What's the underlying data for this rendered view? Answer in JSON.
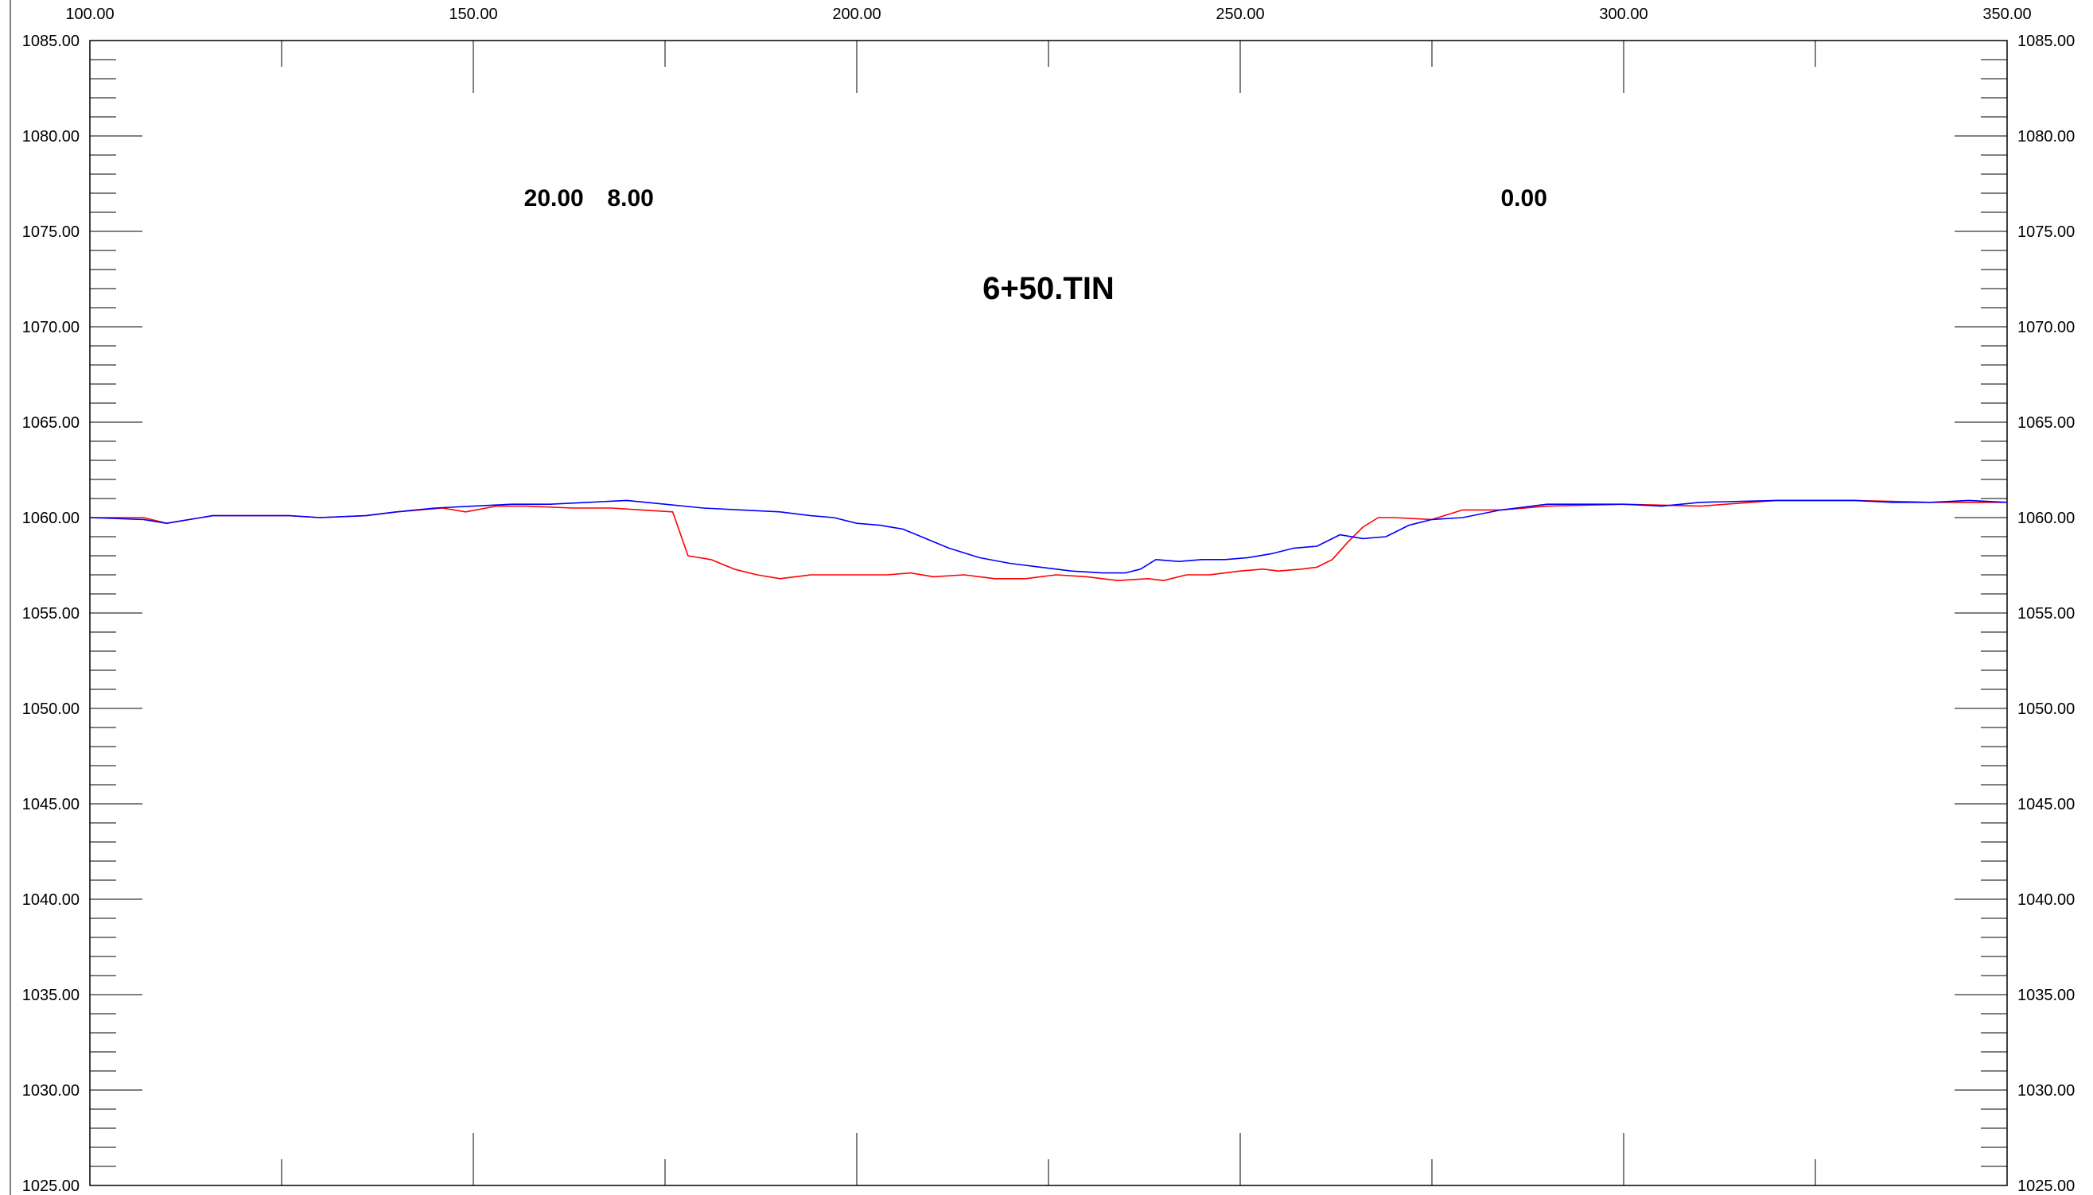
{
  "chart_data": {
    "type": "line",
    "title": "6+50.TIN",
    "xlabel": "",
    "ylabel": "",
    "xlim": [
      100,
      350
    ],
    "ylim": [
      1025,
      1085
    ],
    "x_ticks": [
      "100.00",
      "150.00",
      "200.00",
      "250.00",
      "300.00",
      "350.00"
    ],
    "y_ticks": [
      "1025.00",
      "1030.00",
      "1035.00",
      "1040.00",
      "1045.00",
      "1050.00",
      "1055.00",
      "1060.00",
      "1065.00",
      "1070.00",
      "1075.00",
      "1080.00",
      "1085.00"
    ],
    "annotations": [
      {
        "text": "20.00",
        "x": 160.5,
        "y": 1076.8
      },
      {
        "text": "8.00",
        "x": 170.5,
        "y": 1076.8
      },
      {
        "text": "0.00",
        "x": 287,
        "y": 1076.8
      }
    ],
    "grid": false,
    "series": [
      {
        "color": "#ff0000",
        "x": [
          100,
          107,
          110,
          116,
          122,
          126,
          130,
          136,
          140,
          146,
          149,
          153,
          157,
          163,
          168,
          172,
          176,
          178,
          181,
          184,
          187,
          190,
          194,
          200,
          204,
          207,
          210,
          214,
          218,
          222,
          226,
          230,
          234,
          238,
          240,
          243,
          246,
          250,
          253,
          255,
          258,
          260,
          262,
          264,
          266,
          268,
          270,
          275,
          279,
          284,
          290,
          300,
          310,
          320,
          330,
          340,
          350
        ],
        "y": [
          1060.0,
          1060.0,
          1059.7,
          1060.1,
          1060.1,
          1060.1,
          1060.0,
          1060.1,
          1060.3,
          1060.5,
          1060.3,
          1060.6,
          1060.6,
          1060.5,
          1060.5,
          1060.4,
          1060.3,
          1058.0,
          1057.8,
          1057.3,
          1057.0,
          1056.8,
          1057.0,
          1057.0,
          1057.0,
          1057.1,
          1056.9,
          1057.0,
          1056.8,
          1056.8,
          1057.0,
          1056.9,
          1056.7,
          1056.8,
          1056.7,
          1057.0,
          1057.0,
          1057.2,
          1057.3,
          1057.2,
          1057.3,
          1057.4,
          1057.8,
          1058.7,
          1059.5,
          1060.0,
          1060.0,
          1059.9,
          1060.4,
          1060.4,
          1060.6,
          1060.7,
          1060.6,
          1060.9,
          1060.9,
          1060.8,
          1060.8
        ]
      },
      {
        "color": "#0000ff",
        "x": [
          100,
          107,
          110,
          116,
          122,
          126,
          130,
          136,
          140,
          145,
          150,
          155,
          160,
          165,
          170,
          175,
          180,
          185,
          190,
          194,
          197,
          200,
          203,
          206,
          209,
          212,
          216,
          220,
          224,
          228,
          232,
          235,
          237,
          239,
          242,
          245,
          248,
          251,
          254,
          257,
          260,
          263,
          266,
          269,
          272,
          275,
          279,
          284,
          290,
          300,
          305,
          310,
          320,
          330,
          335,
          340,
          345,
          350
        ],
        "y": [
          1060.0,
          1059.9,
          1059.7,
          1060.1,
          1060.1,
          1060.1,
          1060.0,
          1060.1,
          1060.3,
          1060.5,
          1060.6,
          1060.7,
          1060.7,
          1060.8,
          1060.9,
          1060.7,
          1060.5,
          1060.4,
          1060.3,
          1060.1,
          1060.0,
          1059.7,
          1059.6,
          1059.4,
          1058.9,
          1058.4,
          1057.9,
          1057.6,
          1057.4,
          1057.2,
          1057.1,
          1057.1,
          1057.3,
          1057.8,
          1057.7,
          1057.8,
          1057.8,
          1057.9,
          1058.1,
          1058.4,
          1058.5,
          1059.1,
          1058.9,
          1059.0,
          1059.6,
          1059.9,
          1060.0,
          1060.4,
          1060.7,
          1060.7,
          1060.6,
          1060.8,
          1060.9,
          1060.9,
          1060.8,
          1060.8,
          1060.9,
          1060.8
        ]
      }
    ]
  }
}
